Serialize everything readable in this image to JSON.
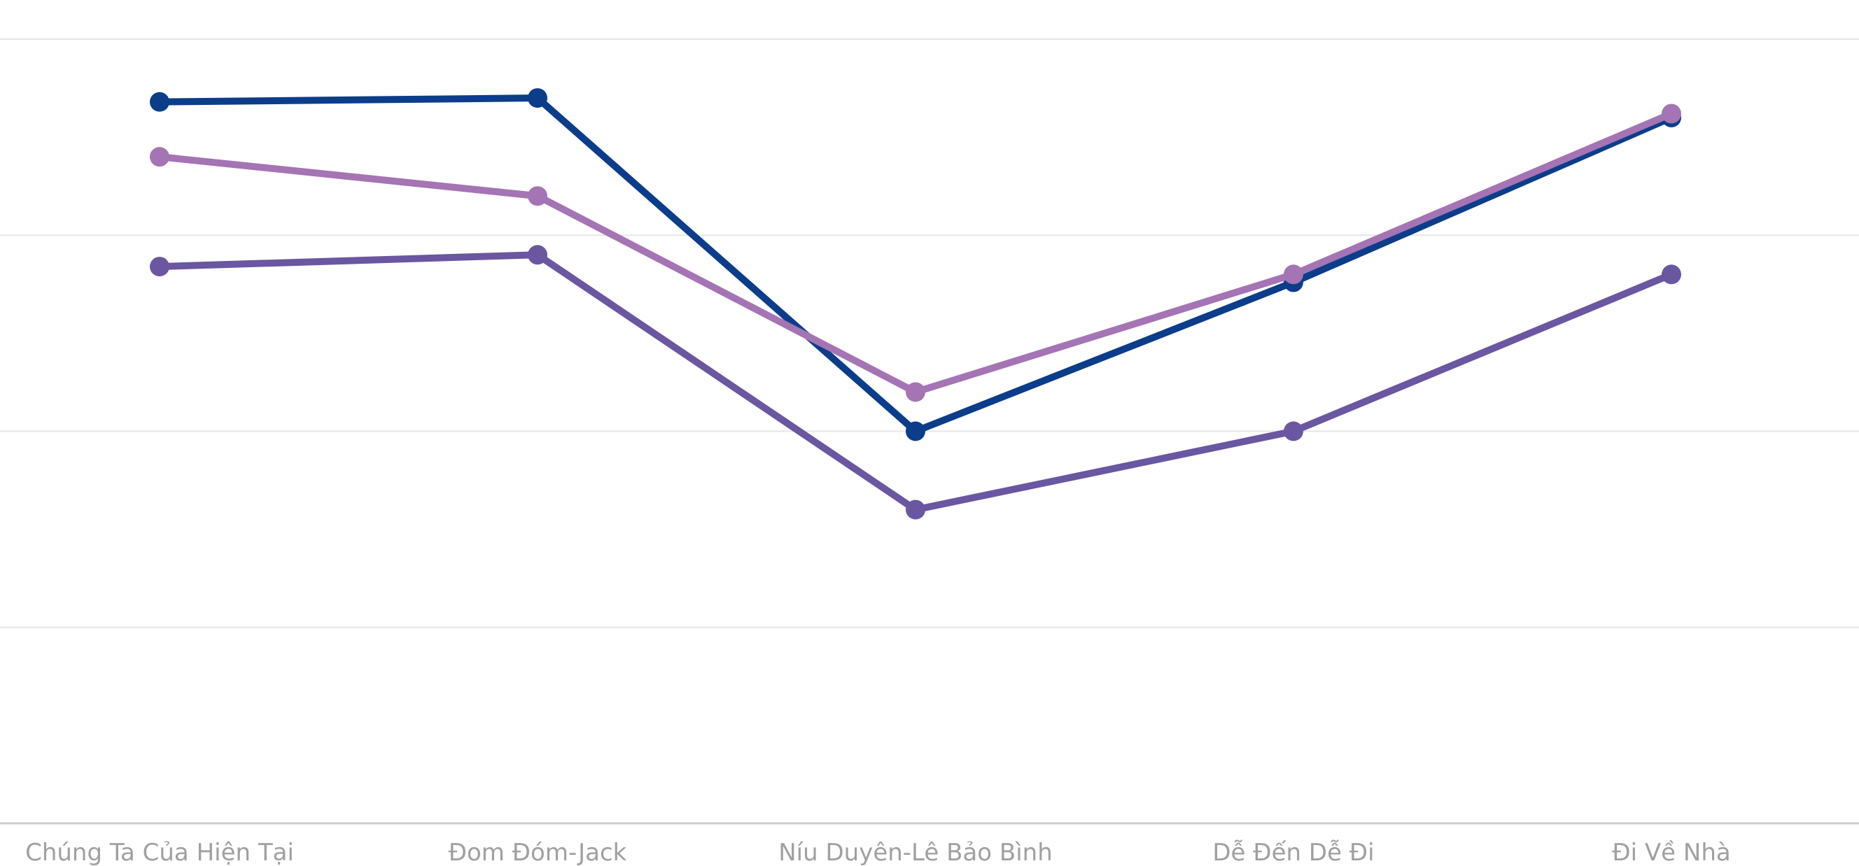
{
  "chart_data": {
    "type": "line",
    "categories": [
      "Chúng Ta Của Hiện Tại",
      "Đom Đóm-Jack",
      "Níu Duyên-Lê Bảo Bình",
      "Dễ Đến Dễ Đi",
      "Đi Về Nhà"
    ],
    "series": [
      {
        "color": "#0b3d8a",
        "values": [
          3.68,
          3.7,
          2.0,
          2.76,
          3.6
        ]
      },
      {
        "color": "#a574b4",
        "values": [
          3.4,
          3.2,
          2.2,
          2.8,
          3.62
        ]
      },
      {
        "color": "#6b56a1",
        "values": [
          2.84,
          2.9,
          1.6,
          2.0,
          2.8
        ]
      }
    ],
    "ylim": [
      0,
      4
    ],
    "grid": true,
    "legend": "none"
  }
}
